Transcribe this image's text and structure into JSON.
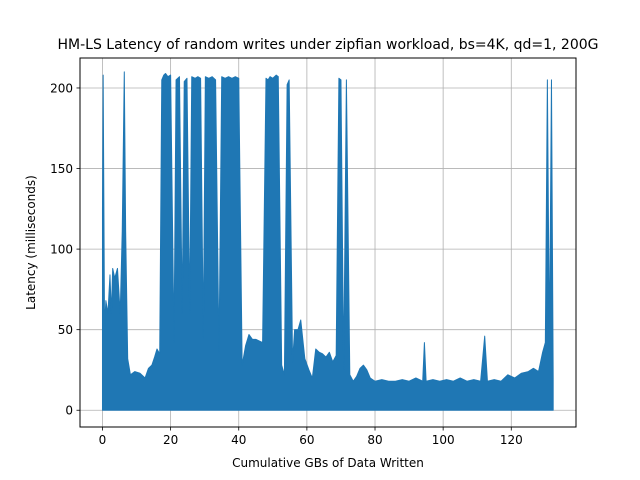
{
  "chart_data": {
    "type": "line",
    "title": "HM-LS Latency of random writes under zipfian workload, bs=4K, qd=1, 200G",
    "xlabel": "Cumulative GBs of Data Written",
    "ylabel": "Latency (milliseconds)",
    "xlim": [
      -6.6,
      139
    ],
    "ylim": [
      -10.4,
      218.6
    ],
    "xticks": [
      0,
      20,
      40,
      60,
      80,
      100,
      120
    ],
    "yticks": [
      0,
      50,
      100,
      150,
      200
    ],
    "grid": true,
    "line_color": "#1f77b4",
    "series": [
      {
        "baseline": 0,
        "points": [
          [
            0.0,
            125
          ],
          [
            0.2,
            208
          ],
          [
            0.6,
            52
          ],
          [
            1.0,
            68
          ],
          [
            1.6,
            60
          ],
          [
            2.2,
            84
          ],
          [
            2.6,
            60
          ],
          [
            3.0,
            88
          ],
          [
            3.6,
            82
          ],
          [
            4.4,
            88
          ],
          [
            5.2,
            60
          ],
          [
            5.8,
            111
          ],
          [
            6.4,
            210
          ],
          [
            6.8,
            111
          ],
          [
            7.4,
            32
          ],
          [
            8.2,
            22
          ],
          [
            9.5,
            24
          ],
          [
            11,
            23
          ],
          [
            12.5,
            20
          ],
          [
            13.5,
            26
          ],
          [
            14.5,
            28
          ],
          [
            15.3,
            33
          ],
          [
            16,
            38
          ],
          [
            16.8,
            35
          ],
          [
            17.4,
            205
          ],
          [
            18,
            208
          ],
          [
            18.5,
            209
          ],
          [
            19.2,
            207
          ],
          [
            20,
            208
          ],
          [
            21,
            42
          ],
          [
            21.6,
            205
          ],
          [
            22.6,
            207
          ],
          [
            23.4,
            60
          ],
          [
            24,
            204
          ],
          [
            24.8,
            206
          ],
          [
            25.6,
            60
          ],
          [
            26.2,
            207
          ],
          [
            27.2,
            206
          ],
          [
            28,
            207
          ],
          [
            28.8,
            206
          ],
          [
            29.6,
            45
          ],
          [
            30.2,
            207
          ],
          [
            31.2,
            206
          ],
          [
            32.2,
            207
          ],
          [
            33.2,
            205
          ],
          [
            34.2,
            35
          ],
          [
            35,
            207
          ],
          [
            36,
            206
          ],
          [
            37,
            207
          ],
          [
            38,
            206
          ],
          [
            39,
            207
          ],
          [
            40,
            206
          ],
          [
            41,
            28
          ],
          [
            42,
            40
          ],
          [
            43,
            47
          ],
          [
            44,
            44
          ],
          [
            45,
            44
          ],
          [
            46,
            43
          ],
          [
            47,
            42
          ],
          [
            48,
            206
          ],
          [
            48.6,
            205
          ],
          [
            49.2,
            207
          ],
          [
            50,
            206
          ],
          [
            51,
            208
          ],
          [
            51.6,
            207
          ],
          [
            52.6,
            28
          ],
          [
            53.4,
            22
          ],
          [
            54.2,
            202
          ],
          [
            54.8,
            205
          ],
          [
            55.8,
            30
          ],
          [
            56.4,
            50
          ],
          [
            57.4,
            50
          ],
          [
            58.2,
            56
          ],
          [
            59.4,
            32
          ],
          [
            60.6,
            25
          ],
          [
            61.6,
            20
          ],
          [
            62.6,
            38
          ],
          [
            63.6,
            36
          ],
          [
            64.6,
            35
          ],
          [
            65.6,
            33
          ],
          [
            66.6,
            36
          ],
          [
            67.6,
            30
          ],
          [
            68.6,
            34
          ],
          [
            69.4,
            206
          ],
          [
            70,
            205
          ],
          [
            70.8,
            25
          ],
          [
            71.6,
            205
          ],
          [
            72.6,
            22
          ],
          [
            73.6,
            18
          ],
          [
            74.6,
            21
          ],
          [
            75.6,
            26
          ],
          [
            76.6,
            28
          ],
          [
            77.6,
            25
          ],
          [
            78.6,
            20
          ],
          [
            80,
            18
          ],
          [
            82,
            19
          ],
          [
            84,
            18
          ],
          [
            86,
            18
          ],
          [
            88,
            19
          ],
          [
            90,
            18
          ],
          [
            92,
            20
          ],
          [
            94,
            18
          ],
          [
            94.5,
            42
          ],
          [
            95,
            18
          ],
          [
            97,
            19
          ],
          [
            99,
            18
          ],
          [
            101,
            19
          ],
          [
            103,
            18
          ],
          [
            105,
            20
          ],
          [
            107,
            18
          ],
          [
            109,
            19
          ],
          [
            111,
            18
          ],
          [
            112.2,
            46
          ],
          [
            113,
            18
          ],
          [
            115,
            19
          ],
          [
            117,
            18
          ],
          [
            119,
            22
          ],
          [
            121,
            20
          ],
          [
            123,
            23
          ],
          [
            125,
            24
          ],
          [
            126.5,
            26
          ],
          [
            128,
            24
          ],
          [
            129.2,
            36
          ],
          [
            130,
            42
          ],
          [
            130.6,
            205
          ],
          [
            131.2,
            38
          ],
          [
            131.8,
            205
          ],
          [
            132.3,
            20
          ]
        ]
      }
    ]
  }
}
